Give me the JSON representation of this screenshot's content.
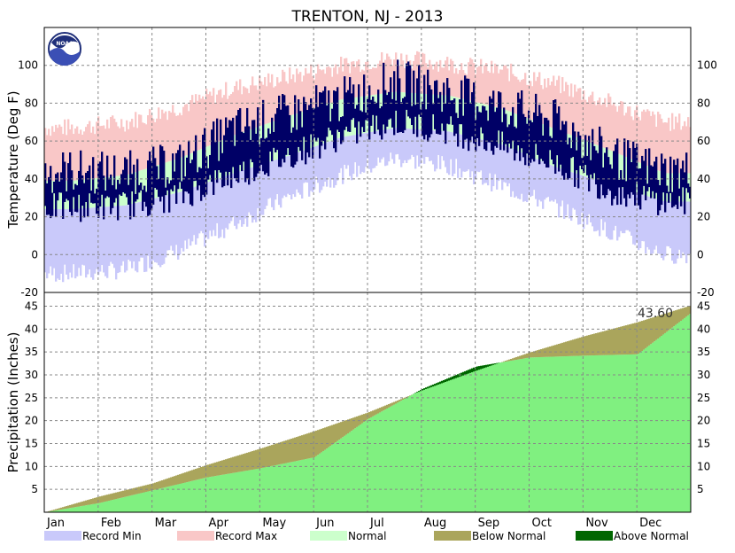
{
  "chart_data": {
    "title": "TRENTON, NJ - 2013",
    "type": "area",
    "months": [
      "Jan",
      "Feb",
      "Mar",
      "Apr",
      "May",
      "Jun",
      "Jul",
      "Aug",
      "Sep",
      "Oct",
      "Nov",
      "Dec"
    ],
    "temperature_panel": {
      "ylabel": "Temperature (Deg F)",
      "ylim": [
        -20,
        120
      ],
      "yticks": [
        -20,
        0,
        20,
        40,
        60,
        80,
        100
      ],
      "grid": true,
      "series": {
        "record_max_monthly": [
          67,
          70,
          78,
          88,
          94,
          100,
          104,
          101,
          97,
          90,
          80,
          70
        ],
        "normal_high_monthly": [
          39,
          42,
          51,
          63,
          73,
          82,
          86,
          84,
          77,
          66,
          55,
          43
        ],
        "normal_low_monthly": [
          24,
          26,
          33,
          43,
          52,
          62,
          67,
          65,
          58,
          46,
          37,
          28
        ],
        "record_min_monthly": [
          -10,
          -8,
          2,
          16,
          30,
          42,
          51,
          47,
          36,
          25,
          12,
          0
        ],
        "observed_high_monthly": [
          44,
          43,
          48,
          66,
          74,
          82,
          92,
          85,
          78,
          70,
          52,
          44
        ],
        "observed_low_monthly": [
          25,
          26,
          31,
          42,
          52,
          63,
          70,
          66,
          57,
          48,
          34,
          28
        ]
      }
    },
    "precipitation_panel": {
      "ylabel": "Precipitation (Inches)",
      "ylim": [
        0,
        48
      ],
      "yticks": [
        5,
        10,
        15,
        20,
        25,
        30,
        35,
        40,
        45
      ],
      "grid": true,
      "annotation": "43.60",
      "series": {
        "normal_cumulative_monthly_end": [
          3.4,
          6.3,
          10.3,
          13.9,
          17.7,
          21.8,
          26.6,
          30.9,
          34.9,
          38.4,
          41.5,
          45.2
        ],
        "observed_cumulative_monthly_end": [
          2.0,
          4.8,
          7.6,
          9.6,
          12.0,
          20.4,
          26.9,
          31.8,
          33.8,
          34.2,
          34.5,
          43.6
        ]
      }
    },
    "legend": [
      {
        "label": "Record Min",
        "color": "#c9c9fa"
      },
      {
        "label": "Record Max",
        "color": "#f9c7c7"
      },
      {
        "label": "Normal",
        "color": "#ccffcc"
      },
      {
        "label": "Below Normal",
        "color": "#aaa55c"
      },
      {
        "label": "Above Normal",
        "color": "#006600"
      }
    ],
    "colors": {
      "observed_temperature": "#000066",
      "observed_precipitation": "#80f080",
      "grid": "#888888",
      "frame": "#000000"
    },
    "logo": "NOAA"
  }
}
